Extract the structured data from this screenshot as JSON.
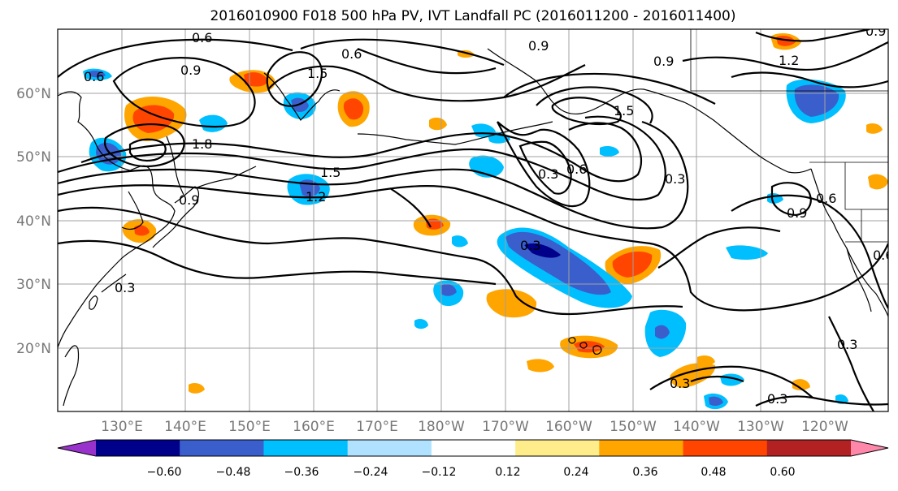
{
  "title": "2016010900 F018 500 hPa PV, IVT Landfall PC (2016011200 - 2016011400)",
  "lat_labels": [
    "60°N",
    "50°N",
    "40°N",
    "30°N",
    "20°N"
  ],
  "lon_labels": [
    "130°E",
    "140°E",
    "150°E",
    "160°E",
    "170°E",
    "180°W",
    "170°W",
    "160°W",
    "150°W",
    "140°W",
    "130°W",
    "120°W"
  ],
  "contour_labels": [
    "0.6",
    "0.9",
    "0.6",
    "0.9",
    "1.5",
    "0.6",
    "0.9",
    "1.5",
    "1.2",
    "1.8",
    "1.5",
    "1.2",
    "0.9",
    "0.3",
    "0.6",
    "0.3",
    "0.3",
    "0.9",
    "0.6",
    "0.3",
    "0.6",
    "0.3",
    "0.3",
    "0.9",
    "0.3"
  ],
  "colorbar": {
    "ticks": [
      "−0.60",
      "−0.48",
      "−0.36",
      "−0.24",
      "−0.12",
      "0.12",
      "0.24",
      "0.36",
      "0.48",
      "0.60"
    ],
    "colors": [
      "#9932cc",
      "#00008b",
      "#3a5fcd",
      "#00bfff",
      "#b0e2ff",
      "#ffffff",
      "#ffec8b",
      "#ffa500",
      "#ff4500",
      "#b22222",
      "#ff88aa"
    ]
  },
  "chart_data": {
    "type": "heatmap",
    "title": "2016010900 F018 500 hPa PV, IVT Landfall PC (2016011200 - 2016011400)",
    "lon_range": [
      120,
      250
    ],
    "lat_range": [
      10,
      70
    ],
    "color_levels": [
      -0.6,
      -0.48,
      -0.36,
      -0.24,
      -0.12,
      0.12,
      0.24,
      0.36,
      0.48,
      0.6
    ],
    "contour_levels": [
      0.3,
      0.6,
      0.9,
      1.2,
      1.5,
      1.8
    ],
    "grid": true
  }
}
